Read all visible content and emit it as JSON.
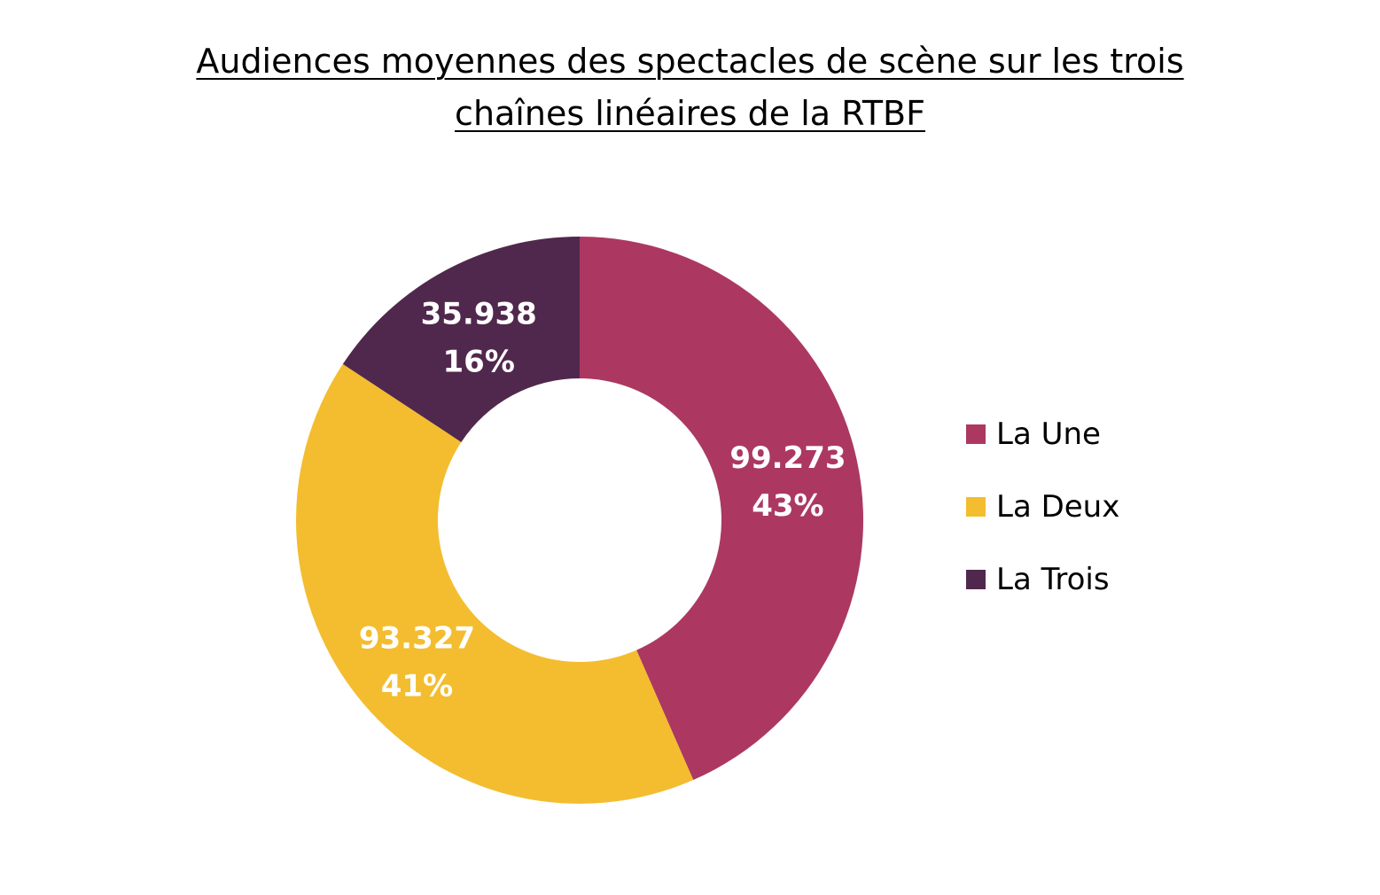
{
  "chart_data": {
    "type": "pie",
    "donut": true,
    "title_lines": [
      "Audiences moyennes des spectacles de scène sur les trois",
      "chaînes linéaires de la RTBF"
    ],
    "categories": [
      "La Une",
      "La Deux",
      "La Trois"
    ],
    "values": [
      99273,
      93327,
      35938
    ],
    "value_labels": [
      "99.273",
      "93.327",
      "35.938"
    ],
    "percent_labels": [
      "43%",
      "41%",
      "16%"
    ],
    "colors": [
      "#AC3862",
      "#F3BD2F",
      "#51284D"
    ],
    "legend_position": "right"
  }
}
